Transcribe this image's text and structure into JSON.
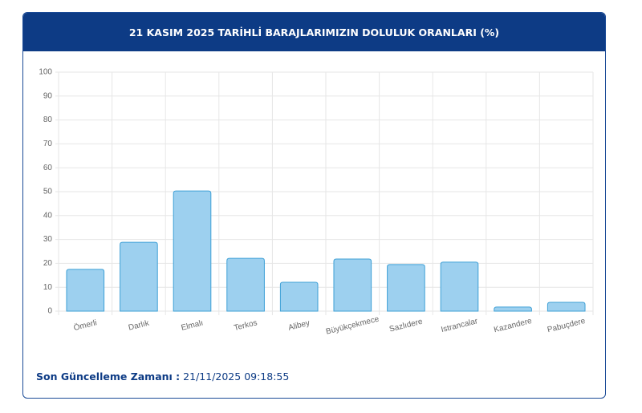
{
  "chart_data": {
    "type": "bar",
    "title": "21 KASIM 2025 TARİHLİ BARAJLARIMIZIN DOLULUK ORANLARI (%)",
    "categories": [
      "Ömerli",
      "Darlık",
      "Elmalı",
      "Terkos",
      "Alibey",
      "Büyükçekmece",
      "Sazlıdere",
      "Istrancalar",
      "Kazandere",
      "Pabuçdere"
    ],
    "values": [
      17.5,
      28.8,
      50.3,
      22.1,
      12.1,
      21.8,
      19.5,
      20.5,
      1.7,
      3.7
    ],
    "color": "#9dd0ef",
    "edge_color": "#3ea0d6",
    "ylim": [
      0,
      100
    ],
    "yticks": [
      0,
      10,
      20,
      30,
      40,
      50,
      60,
      70,
      80,
      90,
      100
    ],
    "grid": true
  },
  "footer": {
    "label": "Son Güncelleme Zamanı :",
    "value": "21/11/2025 09:18:55"
  }
}
